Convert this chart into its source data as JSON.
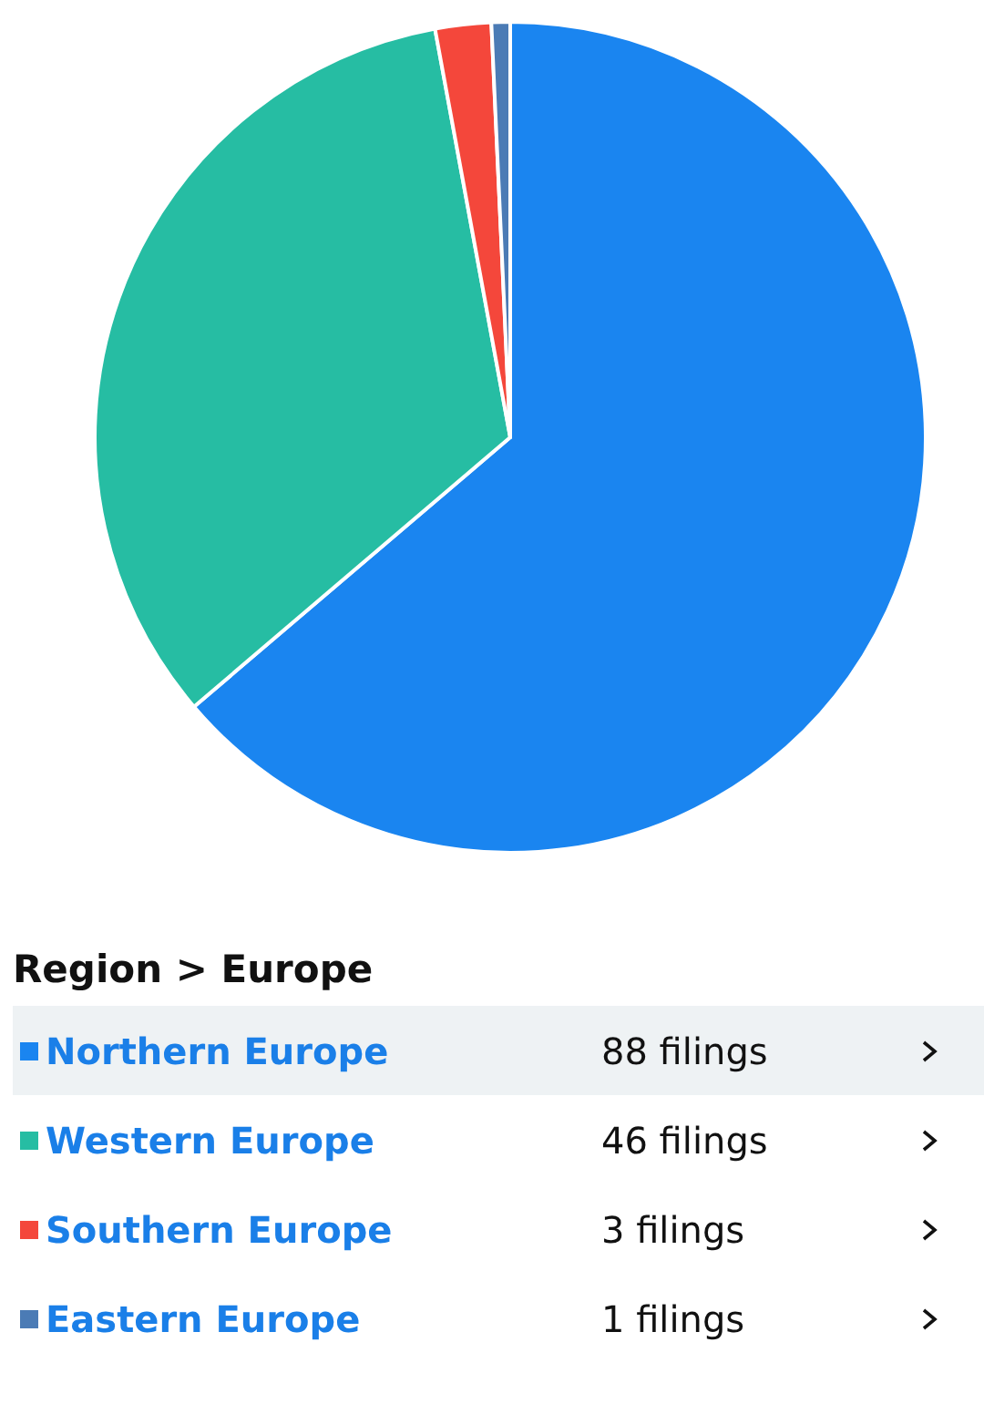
{
  "chart_data": {
    "type": "pie",
    "legend": "bottom",
    "title": "Region > Europe",
    "categories": [
      "Northern Europe",
      "Western Europe",
      "Southern Europe",
      "Eastern Europe"
    ],
    "values": [
      88,
      46,
      3,
      1
    ],
    "colors": [
      "#1a85f0",
      "#26bda3",
      "#f4473b",
      "#4b7bb5"
    ],
    "value_labels": [
      "88 filings",
      "46 filings",
      "3 filings",
      "1 filings"
    ]
  }
}
